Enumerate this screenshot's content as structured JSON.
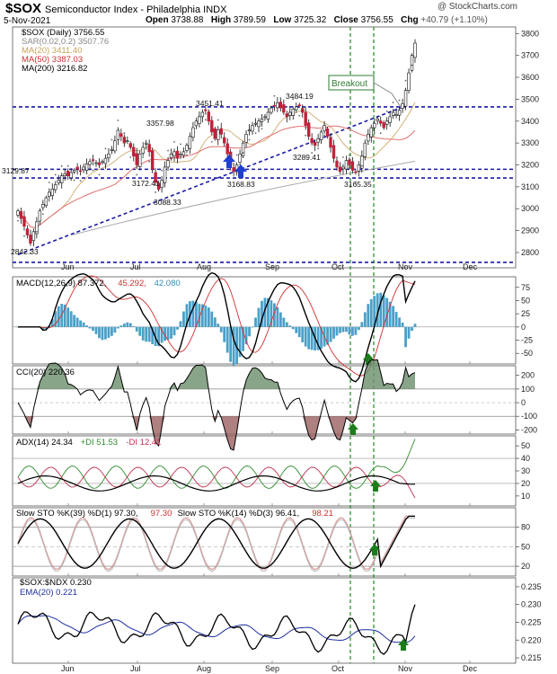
{
  "header": {
    "symbol": "$SOX",
    "description": "Semiconductor Index - Philadelphia INDX",
    "date": "5-Nov-2021",
    "open_label": "Open",
    "open": "3738.88",
    "high_label": "High",
    "high": "3789.59",
    "low_label": "Low",
    "low": "3725.32",
    "close_label": "Close",
    "close": "3756.55",
    "chg_label": "Chg",
    "chg": "+40.79 (+1.10%)",
    "copyright": "@ StockCharts.com"
  },
  "chart_data": [
    {
      "type": "candlestick",
      "panel": "price",
      "legend": [
        {
          "text": "$SOX (Daily) 3756.55",
          "color": "#000000"
        },
        {
          "text": "SAR(0.02,0.2) 3507.76",
          "color": "#888888"
        },
        {
          "text": "MA(20) 3411.40",
          "color": "#c8a45a"
        },
        {
          "text": "MA(50) 3387.03",
          "color": "#d03030"
        },
        {
          "text": "MA(200) 3216.82",
          "color": "#000000"
        }
      ],
      "ylim": [
        2730,
        3830
      ],
      "y_ticks": [
        2800,
        2900,
        3000,
        3100,
        3200,
        3300,
        3400,
        3500,
        3600,
        3700,
        3800
      ],
      "x_tick_labels": [
        "Jun",
        "Jul",
        "Aug",
        "Sep",
        "Oct",
        "Nov",
        "Dec"
      ],
      "horizontal_levels": [
        3465,
        3180,
        3140,
        2755
      ],
      "point_labels": [
        {
          "text": "3129.87",
          "value": 3129.87
        },
        {
          "text": "2842.33",
          "value": 2842.33
        },
        {
          "text": "3172.41",
          "value": 3172.41
        },
        {
          "text": "3088.33",
          "value": 3088.33
        },
        {
          "text": "3357.98",
          "value": 3357.98
        },
        {
          "text": "3451.41",
          "value": 3451.41
        },
        {
          "text": "3168.83",
          "value": 3168.83
        },
        {
          "text": "3484.19",
          "value": 3484.19
        },
        {
          "text": "3289.41",
          "value": 3289.41
        },
        {
          "text": "3165.35",
          "value": 3165.35
        }
      ],
      "annotation": "Breakout",
      "closes": [
        2990,
        2955,
        2920,
        2880,
        2842,
        2895,
        2940,
        2990,
        3020,
        3050,
        3075,
        3090,
        3110,
        3130,
        3150,
        3160,
        3150,
        3165,
        3175,
        3180,
        3172,
        3190,
        3205,
        3215,
        3220,
        3210,
        3200,
        3215,
        3230,
        3250,
        3270,
        3310,
        3358,
        3330,
        3300,
        3310,
        3280,
        3240,
        3200,
        3250,
        3280,
        3300,
        3260,
        3180,
        3120,
        3088,
        3130,
        3190,
        3220,
        3250,
        3260,
        3230,
        3250,
        3260,
        3290,
        3330,
        3370,
        3400,
        3420,
        3440,
        3451,
        3400,
        3350,
        3320,
        3360,
        3340,
        3300,
        3250,
        3200,
        3169,
        3200,
        3250,
        3300,
        3340,
        3360,
        3380,
        3390,
        3400,
        3410,
        3420,
        3440,
        3460,
        3470,
        3484,
        3460,
        3440,
        3420,
        3440,
        3455,
        3465,
        3470,
        3440,
        3380,
        3330,
        3300,
        3289,
        3320,
        3350,
        3380,
        3330,
        3280,
        3230,
        3190,
        3170,
        3190,
        3220,
        3200,
        3175,
        3165,
        3200,
        3240,
        3300,
        3340,
        3370,
        3390,
        3410,
        3390,
        3370,
        3400,
        3420,
        3440,
        3430,
        3450,
        3480,
        3540,
        3620,
        3700,
        3756
      ],
      "series": [
        {
          "name": "MA(20)",
          "last": 3411.4
        },
        {
          "name": "MA(50)",
          "last": 3387.03
        },
        {
          "name": "MA(200)",
          "last": 3216.82
        },
        {
          "name": "SAR(0.02,0.2)",
          "last": 3507.76
        }
      ]
    },
    {
      "type": "line",
      "panel": "macd",
      "legend": [
        {
          "text": "MACD(12,26,9) 87.372,",
          "color": "#000000"
        },
        {
          "text": "45.292,",
          "color": "#d03030"
        },
        {
          "text": "42.080",
          "color": "#2f8fb8"
        }
      ],
      "ylim": [
        -70,
        95
      ],
      "y_ticks": [
        75,
        50,
        25,
        0,
        -25,
        -50
      ]
    },
    {
      "type": "line",
      "panel": "cci",
      "legend": [
        {
          "text": "CCI(20) 220.36",
          "color": "#000000"
        }
      ],
      "ylim": [
        -230,
        270
      ],
      "y_ticks": [
        200,
        100,
        0,
        -100,
        -200
      ]
    },
    {
      "type": "line",
      "panel": "adx",
      "legend": [
        {
          "text": "ADX(14) 24.34",
          "color": "#000000"
        },
        {
          "text": "+DI 51.53",
          "color": "#2e8b2e"
        },
        {
          "text": "-DI 12.41",
          "color": "#c03050"
        }
      ],
      "ylim": [
        2,
        58
      ],
      "y_ticks": [
        50,
        40,
        30,
        20,
        10
      ]
    },
    {
      "type": "line",
      "panel": "sto",
      "legend": [
        {
          "text": "Slow STO %K(39) %D(1) 97.30,",
          "color": "#000000"
        },
        {
          "text": "97.30",
          "color": "#d03030"
        },
        {
          "text": "Slow STO %K(14) %D(3) 96.41,",
          "color": "#000000"
        },
        {
          "text": "98.21",
          "color": "#d03030"
        }
      ],
      "ylim": [
        5,
        110
      ],
      "y_ticks": [
        80,
        50,
        20
      ]
    },
    {
      "type": "line",
      "panel": "ratio",
      "legend": [
        {
          "text": "$SOX:$NDX 0.230",
          "color": "#000000"
        },
        {
          "text": "EMA(20) 0.221",
          "color": "#1f2f9f"
        }
      ],
      "ylim": [
        0.2135,
        0.2375
      ],
      "y_ticks": [
        0.235,
        0.23,
        0.225,
        0.22,
        0.215
      ],
      "y_tick_labels": [
        "0.235",
        "0.230",
        "0.225",
        "0.220",
        "0.215"
      ],
      "x_tick_labels": [
        "Jun",
        "Jul",
        "Aug",
        "Sep",
        "Oct",
        "Nov",
        "Dec"
      ]
    }
  ]
}
